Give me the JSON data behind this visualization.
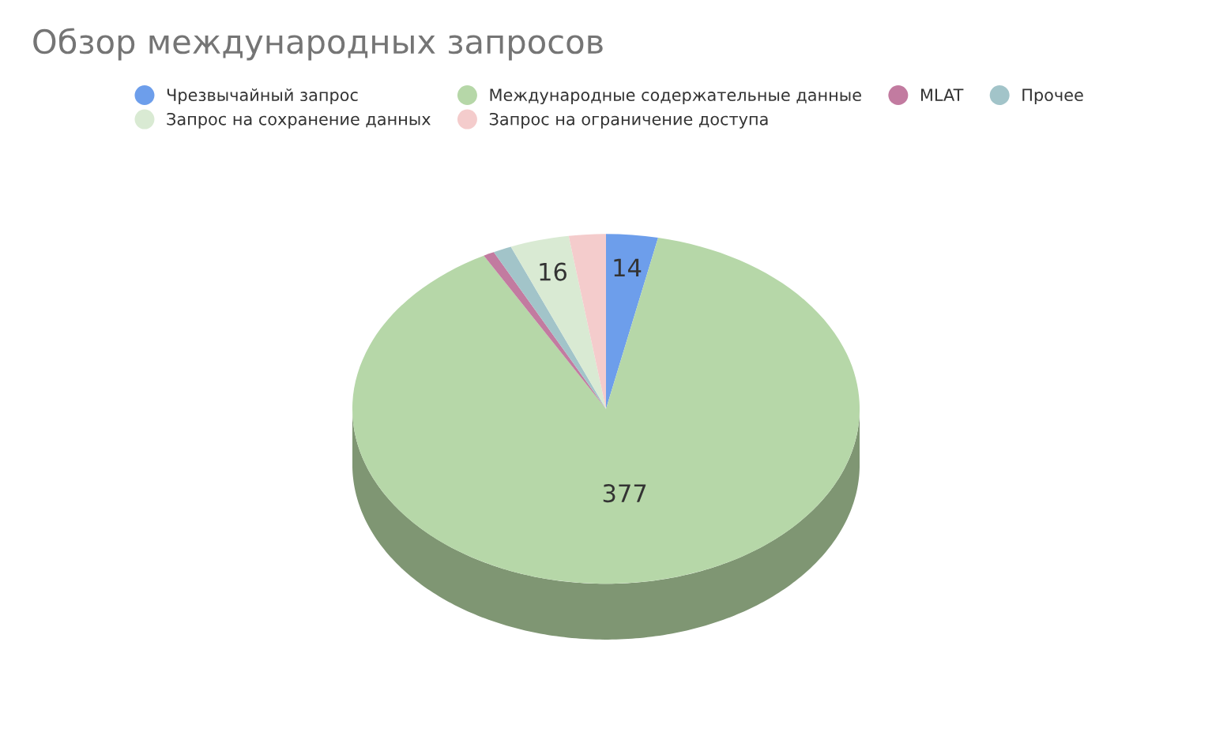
{
  "chart_data": {
    "type": "pie",
    "title": "Обзор международных запросов",
    "categories": [
      "Чрезвычайный запрос",
      "Международные содержательные данные",
      "MLAT",
      "Прочее",
      "Запрос на сохранение данных",
      "Запрос на ограничение доступа"
    ],
    "values": [
      14,
      377,
      3,
      5,
      16,
      10
    ],
    "value_labels": [
      "14",
      "377",
      null,
      null,
      "16",
      null
    ],
    "colors": [
      "#6d9eeb",
      "#b6d7a8",
      "#c27ba0",
      "#a2c4c9",
      "#d9ead3",
      "#f4cccc"
    ],
    "legend": "top"
  }
}
